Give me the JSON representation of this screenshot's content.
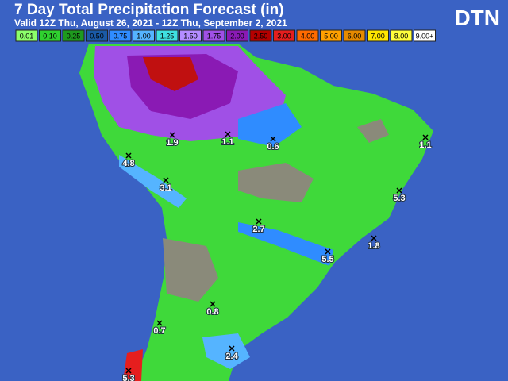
{
  "header": {
    "title": "7 Day Total Precipitation Forecast (in)",
    "subtitle": "Valid 12Z Thu, August 26, 2021 - 12Z Thu, September 2, 2021",
    "logo": "DTN"
  },
  "legend": [
    {
      "label": "0.01",
      "color": "#8cff6a"
    },
    {
      "label": "0.10",
      "color": "#2fd12f"
    },
    {
      "label": "0.25",
      "color": "#1e9a1e"
    },
    {
      "label": "0.50",
      "color": "#1a5aa6"
    },
    {
      "label": "0.75",
      "color": "#2f8cff"
    },
    {
      "label": "1.00",
      "color": "#55b4ff"
    },
    {
      "label": "1.25",
      "color": "#3fe0e0"
    },
    {
      "label": "1.50",
      "color": "#b48cff"
    },
    {
      "label": "1.75",
      "color": "#a050e6"
    },
    {
      "label": "2.00",
      "color": "#8a1ab4"
    },
    {
      "label": "2.50",
      "color": "#b40000"
    },
    {
      "label": "3.00",
      "color": "#e61e1e"
    },
    {
      "label": "4.00",
      "color": "#ff6a00"
    },
    {
      "label": "5.00",
      "color": "#ffa000"
    },
    {
      "label": "6.00",
      "color": "#e68a00"
    },
    {
      "label": "7.00",
      "color": "#ffe600"
    },
    {
      "label": "8.00",
      "color": "#ffff3c"
    },
    {
      "label": "9.00+",
      "color": "#ffffff"
    }
  ],
  "points": [
    {
      "label": "1.9"
    },
    {
      "label": "1.1"
    },
    {
      "label": "0.6"
    },
    {
      "label": "1.1"
    },
    {
      "label": "4.8"
    },
    {
      "label": "3.1"
    },
    {
      "label": "5.3"
    },
    {
      "label": "2.7"
    },
    {
      "label": "5.5"
    },
    {
      "label": "1.8"
    },
    {
      "label": "0.8"
    },
    {
      "label": "0.7"
    },
    {
      "label": "2.4"
    },
    {
      "label": "5.3"
    }
  ]
}
